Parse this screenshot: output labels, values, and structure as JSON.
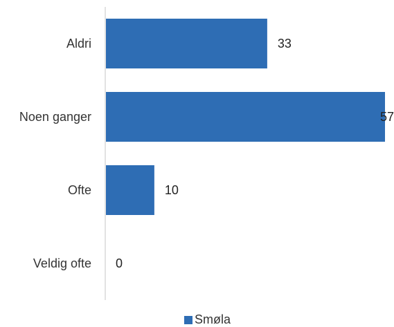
{
  "chart_data": {
    "type": "bar",
    "orientation": "horizontal",
    "categories": [
      "Aldri",
      "Noen ganger",
      "Ofte",
      "Veldig ofte"
    ],
    "series": [
      {
        "name": "Smøla",
        "values": [
          33,
          57,
          10,
          0
        ]
      }
    ],
    "value_labels": [
      "33",
      "57",
      "10",
      "0"
    ],
    "xlim": [
      0,
      57
    ],
    "grid": false,
    "legend": "bottom",
    "colors": {
      "bar": "#2e6db4",
      "axis": "#d9d9d9"
    }
  },
  "legend": {
    "label": "Smøla"
  }
}
